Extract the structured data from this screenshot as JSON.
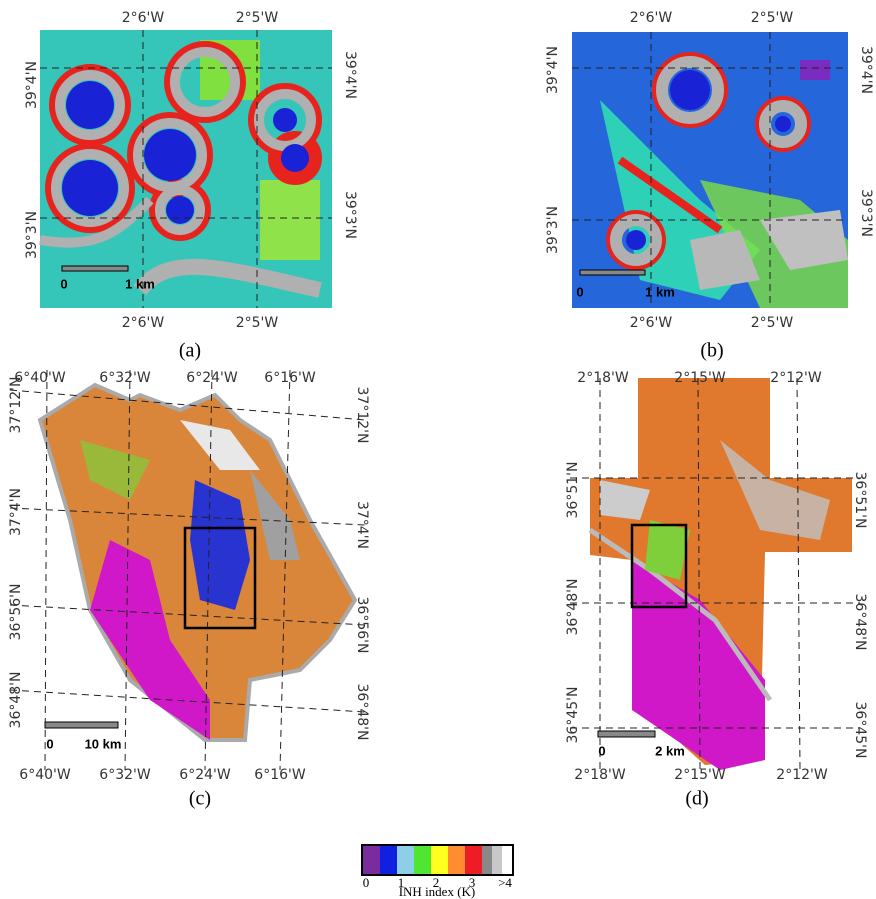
{
  "panels": [
    {
      "caption": "(a)",
      "top_labels": [
        "2°6'W",
        "2°5'W"
      ],
      "bottom_labels": [
        "2°6'W",
        "2°5'W"
      ],
      "left_labels": [
        "39°4'N",
        "39°3'N"
      ],
      "right_labels": [
        "39°4'N",
        "39°3'N"
      ],
      "scale_labels": [
        "0",
        "1 km"
      ]
    },
    {
      "caption": "(b)",
      "top_labels": [
        "2°6'W",
        "2°5'W"
      ],
      "bottom_labels": [
        "2°6'W",
        "2°5'W"
      ],
      "left_labels": [
        "39°4'N",
        "39°3'N"
      ],
      "right_labels": [
        "39°4'N",
        "39°3'N"
      ],
      "scale_labels": [
        "0",
        "1 km"
      ]
    },
    {
      "caption": "(c)",
      "top_labels": [
        "6°40'W",
        "6°32'W",
        "6°24'W",
        "6°16'W"
      ],
      "bottom_labels": [
        "6°40'W",
        "6°32'W",
        "6°24'W",
        "6°16'W"
      ],
      "left_labels": [
        "37°12'N",
        "37°4'N",
        "36°56'N",
        "36°48'N"
      ],
      "right_labels": [
        "37°12'N",
        "37°4'N",
        "36°56'N",
        "36°48'N"
      ],
      "scale_labels": [
        "0",
        "10 km"
      ]
    },
    {
      "caption": "(d)",
      "top_labels": [
        "2°18'W",
        "2°15'W",
        "2°12'W"
      ],
      "bottom_labels": [
        "2°18'W",
        "2°15'W",
        "2°12'W"
      ],
      "left_labels": [
        "36°51'N",
        "36°48'N",
        "36°45'N"
      ],
      "right_labels": [
        "36°51'N",
        "36°48'N",
        "36°45'N"
      ],
      "scale_labels": [
        "0",
        "2 km"
      ]
    }
  ],
  "legend": {
    "tick_labels": [
      "0",
      "1",
      "2",
      "3",
      ">4"
    ],
    "title": "INH index (K)"
  }
}
